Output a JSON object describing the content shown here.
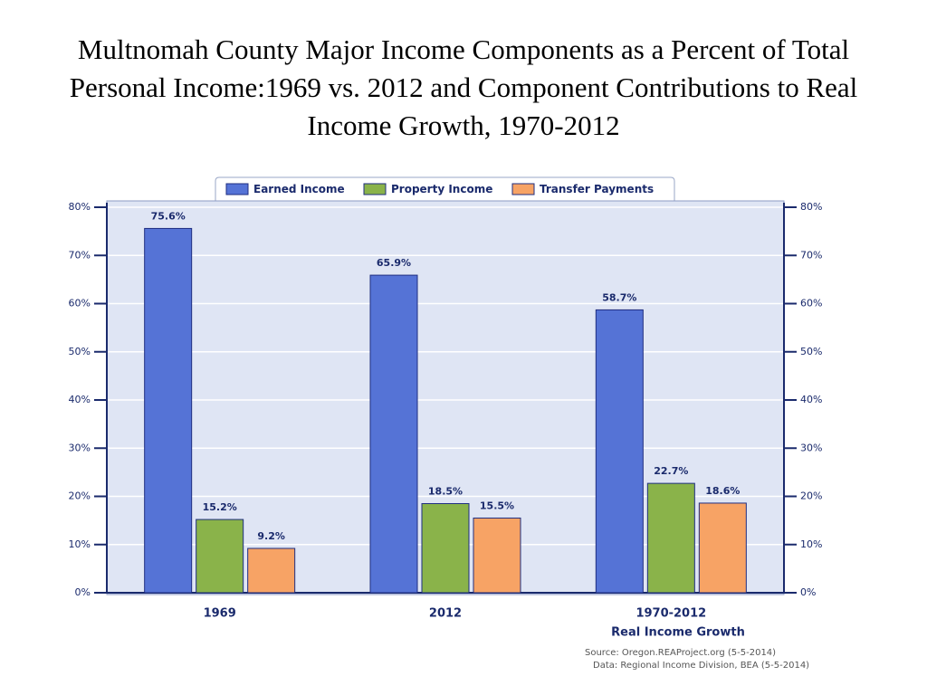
{
  "chart_data": {
    "type": "bar",
    "title": "Multnomah County Major Income Components as a Percent of Total Personal Income:1969 vs. 2012 and Component Contributions to Real Income Growth, 1970-2012",
    "categories": [
      "1969",
      "2012",
      "1970-2012"
    ],
    "x_annotation": "Real Income Growth",
    "series": [
      {
        "name": "Earned Income",
        "color": "#5573d6",
        "values": [
          75.6,
          65.9,
          58.7
        ],
        "value_labels": [
          "75.6%",
          "65.9%",
          "58.7%"
        ]
      },
      {
        "name": "Property Income",
        "color": "#8ab34a",
        "values": [
          15.2,
          18.5,
          22.7
        ],
        "value_labels": [
          "15.2%",
          "18.5%",
          "22.7%"
        ]
      },
      {
        "name": "Transfer Payments",
        "color": "#f7a365",
        "values": [
          9.2,
          15.5,
          18.6
        ],
        "value_labels": [
          "9.2%",
          "15.5%",
          "18.6%"
        ]
      }
    ],
    "ylim": [
      0,
      80
    ],
    "yticks": [
      {
        "value": 0,
        "label": "0%"
      },
      {
        "value": 10,
        "label": "10%"
      },
      {
        "value": 20,
        "label": "20%"
      },
      {
        "value": 30,
        "label": "30%"
      },
      {
        "value": 40,
        "label": "40%"
      },
      {
        "value": 50,
        "label": "50%"
      },
      {
        "value": 60,
        "label": "60%"
      },
      {
        "value": 70,
        "label": "70%"
      },
      {
        "value": 80,
        "label": "80%"
      }
    ],
    "y2lim": [
      0,
      80
    ],
    "y2ticks": [
      {
        "value": 0,
        "label": "0%"
      },
      {
        "value": 10,
        "label": "10%"
      },
      {
        "value": 20,
        "label": "20%"
      },
      {
        "value": 30,
        "label": "30%"
      },
      {
        "value": 40,
        "label": "40%"
      },
      {
        "value": 50,
        "label": "50%"
      },
      {
        "value": 60,
        "label": "60%"
      },
      {
        "value": 70,
        "label": "70%"
      },
      {
        "value": 80,
        "label": "80%"
      }
    ],
    "grid": true,
    "legend": "top",
    "source": "Source: Oregon.REAProject.org (5-5-2014)",
    "data_note": "Data: Regional Income Division, BEA (5-5-2014)"
  }
}
